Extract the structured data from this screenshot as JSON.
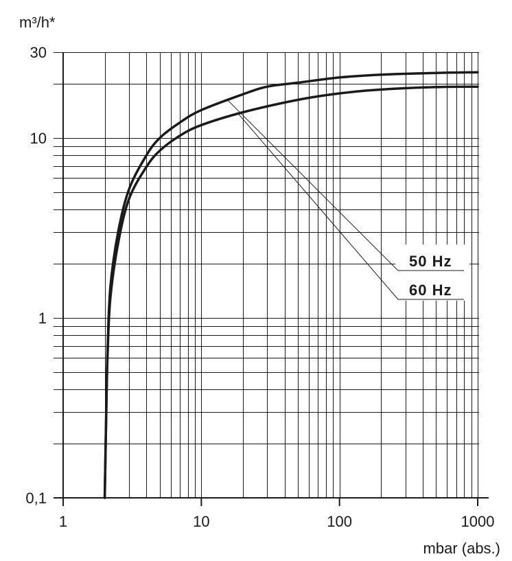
{
  "chart_data": {
    "type": "line",
    "xlabel": "mbar (abs.)",
    "ylabel": "m³/h*",
    "x_scale": "log",
    "y_scale": "log",
    "xlim": [
      1,
      1000
    ],
    "ylim": [
      0.1,
      30
    ],
    "grid": true,
    "x_ticks": [
      {
        "value": 1,
        "label": "1"
      },
      {
        "value": 10,
        "label": "10"
      },
      {
        "value": 100,
        "label": "100"
      },
      {
        "value": 1000,
        "label": "1000"
      }
    ],
    "y_ticks": [
      {
        "value": 0.1,
        "label": "0,1"
      },
      {
        "value": 1,
        "label": "1"
      },
      {
        "value": 10,
        "label": "10"
      },
      {
        "value": 30,
        "label": "30"
      }
    ],
    "series": [
      {
        "name": "50 Hz",
        "points": [
          {
            "x": 2.0,
            "y": 0.1
          },
          {
            "x": 2.05,
            "y": 0.3
          },
          {
            "x": 2.1,
            "y": 0.7
          },
          {
            "x": 2.2,
            "y": 1.5
          },
          {
            "x": 2.5,
            "y": 3.0
          },
          {
            "x": 3,
            "y": 5.2
          },
          {
            "x": 4,
            "y": 8.0
          },
          {
            "x": 5,
            "y": 10.0
          },
          {
            "x": 7,
            "y": 12.2
          },
          {
            "x": 10,
            "y": 14.3
          },
          {
            "x": 20,
            "y": 17.5
          },
          {
            "x": 30,
            "y": 19.3
          },
          {
            "x": 50,
            "y": 20.3
          },
          {
            "x": 100,
            "y": 21.7
          },
          {
            "x": 200,
            "y": 22.5
          },
          {
            "x": 500,
            "y": 23.0
          },
          {
            "x": 1000,
            "y": 23.2
          }
        ]
      },
      {
        "name": "60 Hz",
        "points": [
          {
            "x": 2.0,
            "y": 0.1
          },
          {
            "x": 2.05,
            "y": 0.3
          },
          {
            "x": 2.1,
            "y": 0.65
          },
          {
            "x": 2.2,
            "y": 1.3
          },
          {
            "x": 2.5,
            "y": 2.6
          },
          {
            "x": 3,
            "y": 4.6
          },
          {
            "x": 4,
            "y": 6.9
          },
          {
            "x": 5,
            "y": 8.5
          },
          {
            "x": 7,
            "y": 10.3
          },
          {
            "x": 10,
            "y": 11.8
          },
          {
            "x": 20,
            "y": 13.9
          },
          {
            "x": 50,
            "y": 16.3
          },
          {
            "x": 100,
            "y": 17.7
          },
          {
            "x": 200,
            "y": 18.6
          },
          {
            "x": 500,
            "y": 19.2
          },
          {
            "x": 1000,
            "y": 19.3
          }
        ]
      }
    ]
  }
}
